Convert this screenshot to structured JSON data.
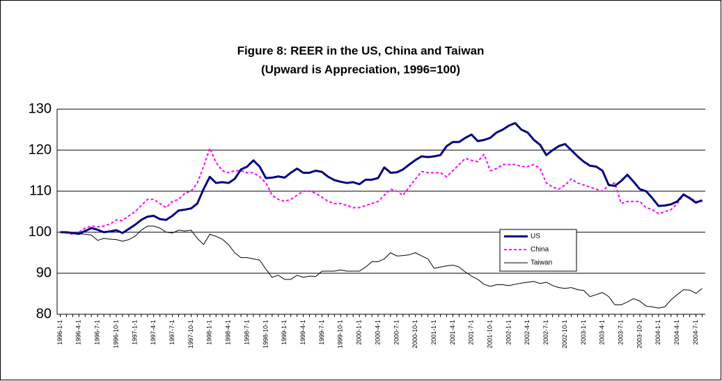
{
  "chart_data": {
    "type": "line",
    "title": "Figure 8: REER in the US, China and Taiwan",
    "subtitle": "(Upward is Appreciation, 1996=100)",
    "categories": [
      "1996-1-1",
      null,
      null,
      "1996-4-1",
      null,
      null,
      "1996-7-1",
      null,
      null,
      "1996-10-1",
      null,
      null,
      "1997-1-1",
      null,
      null,
      "1997-4-1",
      null,
      null,
      "1997-7-1",
      null,
      null,
      "1997-10-1",
      null,
      null,
      "1998-1-1",
      null,
      null,
      "1998-4-1",
      null,
      null,
      "1998-7-1",
      null,
      null,
      "1998-10-1",
      null,
      null,
      "1999-1-1",
      null,
      null,
      "1999-4-1",
      null,
      null,
      "1999-7-1",
      null,
      null,
      "1999-10-1",
      null,
      null,
      "2000-1-1",
      null,
      null,
      "2000-4-1",
      null,
      null,
      "2000-7-1",
      null,
      null,
      "2000-10-1",
      null,
      null,
      "2001-1-1",
      null,
      null,
      "2001-4-1",
      null,
      null,
      "2001-7-1",
      null,
      null,
      "2001-10-1",
      null,
      null,
      "2002-1-1",
      null,
      null,
      "2002-4-1",
      null,
      null,
      "2002-7-1",
      null,
      null,
      "2002-10-1",
      null,
      null,
      "2003-1-1",
      null,
      null,
      "2003-4-1",
      null,
      null,
      "2003-7-1",
      null,
      null,
      "2003-10-1",
      null,
      null,
      "2004-1-1",
      null,
      null,
      "2004-4-1",
      null,
      null,
      "2004-7-1",
      null
    ],
    "series": [
      {
        "name": "US",
        "color": "#000080",
        "width": 3,
        "style": "solid",
        "values": [
          100,
          100,
          99.8,
          99.6,
          100.3,
          101,
          100.6,
          100,
          100.2,
          100.5,
          99.8,
          100.8,
          101.8,
          103,
          103.8,
          104,
          103.2,
          103,
          104,
          105.3,
          105.5,
          105.8,
          107,
          110.5,
          113.5,
          112,
          112.2,
          112,
          113,
          115.3,
          116,
          117.5,
          116,
          113.2,
          113.3,
          113.6,
          113.3,
          114.5,
          115.5,
          114.5,
          114.5,
          115,
          114.7,
          113.5,
          112.7,
          112.3,
          112,
          112.2,
          111.7,
          112.8,
          112.8,
          113.2,
          115.8,
          114.5,
          114.6,
          115.3,
          116.5,
          117.6,
          118.5,
          118.3,
          118.5,
          118.8,
          121,
          122,
          122,
          123,
          123.8,
          122.2,
          122.5,
          123,
          124.3,
          125,
          126,
          126.6,
          125,
          124.3,
          122.5,
          121.3,
          118.8,
          120,
          121,
          121.5,
          120,
          118.5,
          117.2,
          116.2,
          116,
          115,
          111.5,
          111.3,
          112.5,
          114,
          112.3,
          110.5,
          110,
          108.3,
          106.4,
          106.5,
          106.8,
          107.5,
          109.2,
          108.3,
          107.2,
          107.8
        ]
      },
      {
        "name": "China",
        "color": "#ff00ff",
        "width": 2,
        "style": "dotted",
        "values": [
          100,
          99.8,
          99.5,
          100,
          101,
          101.5,
          101.3,
          101.5,
          102,
          103,
          102.8,
          104,
          105,
          106.5,
          108,
          108,
          107,
          106,
          107.5,
          108,
          109.5,
          110,
          112,
          116,
          120.5,
          117,
          115,
          114.5,
          115,
          115,
          114.5,
          114.5,
          113.5,
          112,
          109,
          108,
          107.5,
          108,
          109,
          110,
          110,
          109.5,
          108.5,
          107.5,
          107,
          107,
          106.5,
          106,
          106,
          106.5,
          107,
          107.5,
          109,
          110.5,
          110,
          109,
          111,
          113,
          114.8,
          114.5,
          114.5,
          114.5,
          113.5,
          115,
          116.5,
          118,
          117.5,
          117.2,
          119,
          115,
          115.5,
          116.5,
          116.5,
          116.5,
          116,
          116,
          116.5,
          115.5,
          112,
          111,
          110.5,
          111.5,
          113,
          112,
          111.5,
          111,
          110.5,
          110,
          111.5,
          112,
          107,
          107.5,
          107.5,
          107.5,
          106,
          105.5,
          104.5,
          105,
          105.5,
          107,
          109,
          108.5,
          107.5,
          107.5
        ]
      },
      {
        "name": "Taiwan",
        "color": "#000000",
        "width": 1,
        "style": "solid",
        "values": [
          100,
          99.8,
          99.8,
          99.6,
          99.5,
          99.3,
          98,
          98.5,
          98.3,
          98.2,
          97.8,
          98.2,
          99,
          100.5,
          101.5,
          101.5,
          101,
          100,
          99.8,
          100.5,
          100.3,
          100.5,
          98.5,
          97,
          99.5,
          99,
          98.3,
          97,
          95,
          93.8,
          93.8,
          93.5,
          93.2,
          91,
          89,
          89.5,
          88.5,
          88.5,
          89.5,
          89,
          89.3,
          89.2,
          90.5,
          90.5,
          90.5,
          90.8,
          90.5,
          90.5,
          90.5,
          91.5,
          92.8,
          92.8,
          93.5,
          95,
          94.2,
          94.3,
          94.5,
          95,
          94.2,
          93.5,
          91.2,
          91.5,
          91.8,
          92,
          91.5,
          90.3,
          89.3,
          88.5,
          87.3,
          86.8,
          87.2,
          87.2,
          87,
          87.3,
          87.6,
          87.8,
          88,
          87.5,
          87.8,
          87,
          86.5,
          86.3,
          86.5,
          86,
          85.8,
          84.3,
          84.8,
          85.3,
          84.3,
          82.3,
          82.3,
          83,
          83.8,
          83.2,
          82,
          81.8,
          81.5,
          81.8,
          83.5,
          84.8,
          86,
          85.9,
          85.1,
          86.3
        ]
      }
    ],
    "ylim": [
      80,
      130
    ],
    "yticks": [
      80,
      90,
      100,
      110,
      120,
      130
    ],
    "grid": true,
    "legend": "inside"
  }
}
